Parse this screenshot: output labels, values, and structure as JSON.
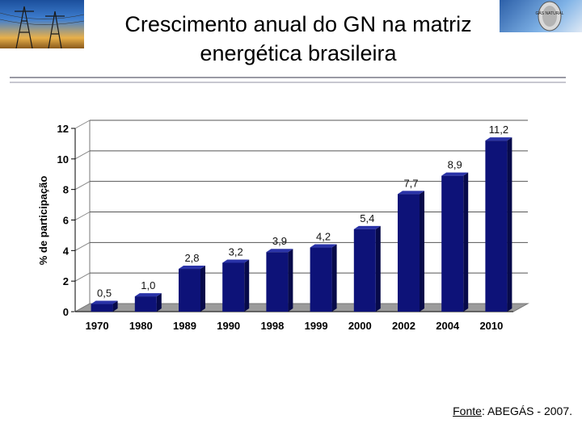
{
  "title": {
    "line1": "Crescimento anual do GN na matriz",
    "line2": "energética brasileira"
  },
  "logo_right": {
    "label": "GÁS NATURAL"
  },
  "source": {
    "label": "Fonte",
    "text": ": ABEGÁS - 2007."
  },
  "chart_data": {
    "type": "bar",
    "title": "",
    "xlabel": "",
    "ylabel": "% de participação",
    "categories": [
      "1970",
      "1980",
      "1989",
      "1990",
      "1998",
      "1999",
      "2000",
      "2002",
      "2004",
      "2010"
    ],
    "values": [
      0.5,
      1.0,
      2.8,
      3.2,
      3.9,
      4.2,
      5.4,
      7.7,
      8.9,
      11.2
    ],
    "value_labels": [
      "0,5",
      "1,0",
      "2,8",
      "3,2",
      "3,9",
      "4,2",
      "5,4",
      "7,7",
      "8,9",
      "11,2"
    ],
    "yticks": [
      0,
      2,
      4,
      6,
      8,
      10,
      12
    ],
    "ylim": [
      0,
      12
    ],
    "grid": true,
    "colors": {
      "bar_front": "#0d1278",
      "bar_side": "#070a4a",
      "bar_top": "#2a33a8",
      "grid": "#555555",
      "floor": "#9b9b9b"
    }
  }
}
